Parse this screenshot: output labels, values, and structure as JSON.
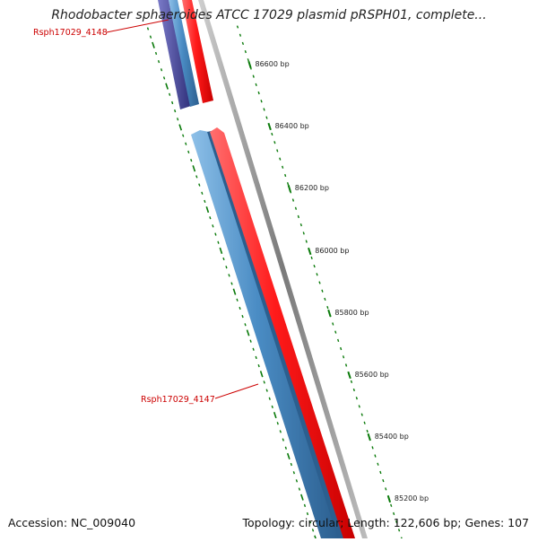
{
  "title": "Rhodobacter sphaeroides ATCC 17029 plasmid pRSPH01, complete...",
  "footer": {
    "accession": "Accession: NC_009040",
    "summary": "Topology: circular; Length: 122,606 bp; Genes: 107"
  },
  "colors": {
    "tick_marks": "#0a7a0a",
    "gene_label": "#cc0000",
    "forward_gene": "#ff1a1a",
    "reverse_gene": "#4a8cc4",
    "reverse_gene_dark": "#4a4a9c",
    "backbone": "#8a8a8a"
  },
  "ruler": {
    "ticks": [
      {
        "label": "86600 bp"
      },
      {
        "label": "86400 bp"
      },
      {
        "label": "86200 bp"
      },
      {
        "label": "86000 bp"
      },
      {
        "label": "85800 bp"
      },
      {
        "label": "85600 bp"
      },
      {
        "label": "85400 bp"
      },
      {
        "label": "85200 bp"
      }
    ]
  },
  "genes": [
    {
      "label": "Rsph17029_4148"
    },
    {
      "label": "Rsph17029_4147"
    }
  ]
}
